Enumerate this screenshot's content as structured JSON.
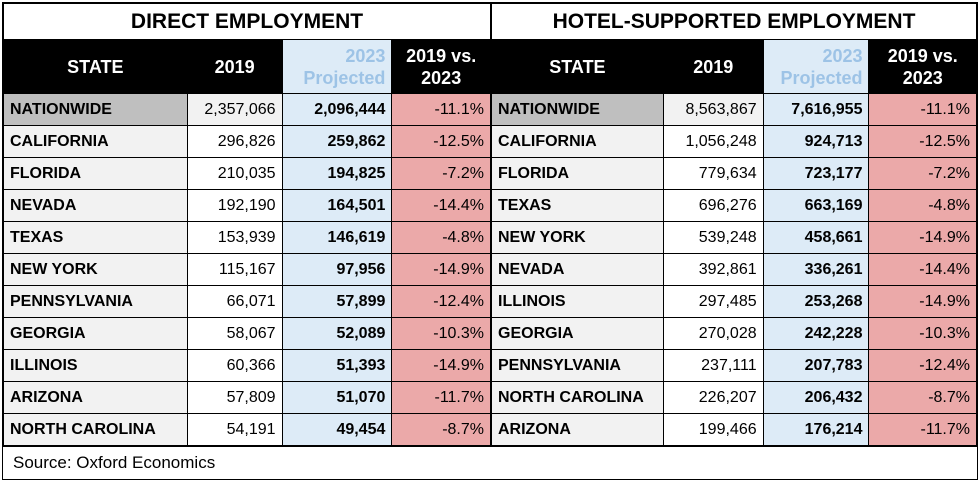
{
  "tables": [
    {
      "title": "DIRECT EMPLOYMENT",
      "headers": [
        "STATE",
        "2019",
        "2023 Projected",
        "2019 vs. 2023"
      ],
      "rows": [
        [
          "NATIONWIDE",
          "2,357,066",
          "2,096,444",
          "-11.1%"
        ],
        [
          "CALIFORNIA",
          "296,826",
          "259,862",
          "-12.5%"
        ],
        [
          "FLORIDA",
          "210,035",
          "194,825",
          "-7.2%"
        ],
        [
          "NEVADA",
          "192,190",
          "164,501",
          "-14.4%"
        ],
        [
          "TEXAS",
          "153,939",
          "146,619",
          "-4.8%"
        ],
        [
          "NEW YORK",
          "115,167",
          "97,956",
          "-14.9%"
        ],
        [
          "PENNSYLVANIA",
          "66,071",
          "57,899",
          "-12.4%"
        ],
        [
          "GEORGIA",
          "58,067",
          "52,089",
          "-10.3%"
        ],
        [
          "ILLINOIS",
          "60,366",
          "51,393",
          "-14.9%"
        ],
        [
          "ARIZONA",
          "57,809",
          "51,070",
          "-11.7%"
        ],
        [
          "NORTH CAROLINA",
          "54,191",
          "49,454",
          "-8.7%"
        ]
      ]
    },
    {
      "title": "HOTEL-SUPPORTED EMPLOYMENT",
      "headers": [
        "STATE",
        "2019",
        "2023 Projected",
        "2019 vs. 2023"
      ],
      "rows": [
        [
          "NATIONWIDE",
          "8,563,867",
          "7,616,955",
          "-11.1%"
        ],
        [
          "CALIFORNIA",
          "1,056,248",
          "924,713",
          "-12.5%"
        ],
        [
          "FLORIDA",
          "779,634",
          "723,177",
          "-7.2%"
        ],
        [
          "TEXAS",
          "696,276",
          "663,169",
          "-4.8%"
        ],
        [
          "NEW YORK",
          "539,248",
          "458,661",
          "-14.9%"
        ],
        [
          "NEVADA",
          "392,861",
          "336,261",
          "-14.4%"
        ],
        [
          "ILLINOIS",
          "297,485",
          "253,268",
          "-14.9%"
        ],
        [
          "GEORGIA",
          "270,028",
          "242,228",
          "-10.3%"
        ],
        [
          "PENNSYLVANIA",
          "237,111",
          "207,783",
          "-12.4%"
        ],
        [
          "NORTH CAROLINA",
          "226,207",
          "206,432",
          "-8.7%"
        ],
        [
          "ARIZONA",
          "199,466",
          "176,214",
          "-11.7%"
        ]
      ]
    }
  ],
  "source": "Source: Oxford Economics"
}
